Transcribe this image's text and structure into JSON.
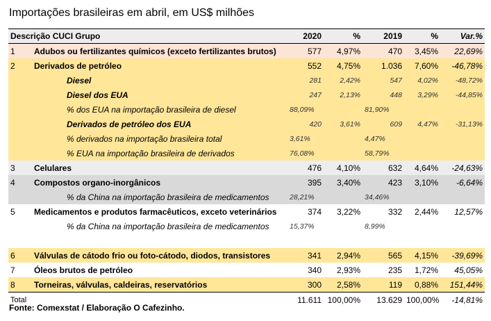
{
  "header": {
    "title": "Importações brasileiras em abril, em US$ milhões"
  },
  "table": {
    "columns": [
      "Descrição CUCI Grupo",
      "2020",
      "%",
      "2019",
      "%",
      "Var.%"
    ],
    "rows": [
      [
        "1",
        "Adubos ou fertilizantes químicos (exceto fertilizantes brutos)",
        "577",
        "4,97%",
        "470",
        "3,45%",
        "22,69%"
      ],
      [
        "2",
        "Derivados de petróleo",
        "552",
        "4,75%",
        "1.036",
        "7,60%",
        "-46,78%"
      ],
      [
        null,
        "Diesel",
        "281",
        "2,42%",
        "547",
        "4,02%",
        "-48,72%"
      ],
      [
        null,
        "Diesel dos EUA",
        "247",
        "2,13%",
        "448",
        "3,29%",
        "-44,85%"
      ],
      [
        null,
        "% dos EUA na importação brasileira de diesel",
        "88,09%",
        null,
        "81,90%",
        null,
        null
      ],
      [
        null,
        "Derivados de petróleo dos EUA",
        "420",
        "3,61%",
        "609",
        "4,47%",
        "-31,13%"
      ],
      [
        null,
        "% derivados na importação brasileira total",
        "3,61%",
        null,
        "4,47%",
        null,
        null
      ],
      [
        null,
        "% EUA na importação brasileira de derivados",
        "76,08%",
        null,
        "58,79%",
        null,
        null
      ],
      [
        "3",
        "Celulares",
        "476",
        "4,10%",
        "632",
        "4,64%",
        "-24,63%"
      ],
      [
        "4",
        "Compostos organo-inorgânicos",
        "395",
        "3,40%",
        "423",
        "3,10%",
        "-6,64%"
      ],
      [
        null,
        "% da China na importação brasileira de medicamentos",
        "28,21%",
        null,
        "34,46%",
        null,
        null
      ],
      [
        "5",
        "Medicamentos e produtos farmacêuticos, exceto veterinários",
        "374",
        "3,22%",
        "332",
        "2,44%",
        "12,57%"
      ],
      [
        null,
        "% da China na importação brasileira de medicamentos",
        "15,37%",
        null,
        "8,99%",
        null,
        null
      ],
      [
        "6",
        "Válvulas de cátodo frio ou foto-cátodo, diodos, transistores",
        "341",
        "2,94%",
        "565",
        "4,15%",
        "-39,69%"
      ],
      [
        "7",
        "Óleos brutos de petróleo",
        "340",
        "2,93%",
        "235",
        "1,72%",
        "45,05%"
      ],
      [
        "8",
        "Torneiras, válvulas, caldeiras, reservatórios",
        "300",
        "2,58%",
        "119",
        "0,88%",
        "151,44%"
      ]
    ],
    "total": [
      "Total",
      "11.611",
      "100,00%",
      "13.629",
      "100,00%",
      "-14,81%"
    ]
  },
  "footer": {
    "source": "Fonte: Comexstat / Elaboração O Cafezinho."
  }
}
